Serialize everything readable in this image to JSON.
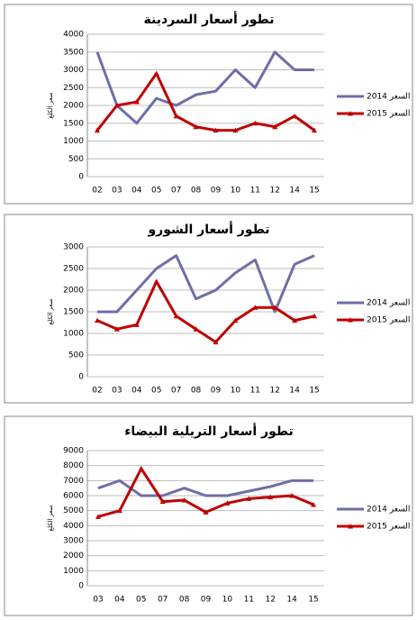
{
  "chart_data": [
    {
      "type": "line",
      "title": "تطور أسعار السردينة",
      "y_label": "سعر الكلغ",
      "categories": [
        "02",
        "03",
        "04",
        "05",
        "07",
        "08",
        "09",
        "10",
        "11",
        "12",
        "14",
        "15"
      ],
      "series": [
        {
          "name": "السعر 2014",
          "color": "#6e6ea8",
          "values": [
            3500,
            2000,
            1500,
            2200,
            2000,
            2300,
            2400,
            3000,
            2500,
            3500,
            3000,
            3000
          ]
        },
        {
          "name": "السعر 2015",
          "color": "#c00000",
          "values": [
            1300,
            2000,
            2100,
            2900,
            1700,
            1400,
            1300,
            1300,
            1500,
            1400,
            1700,
            1300
          ]
        }
      ],
      "ylim": [
        0,
        4000
      ],
      "yticks": [
        0,
        500,
        1000,
        1500,
        2000,
        2500,
        3000,
        3500,
        4000
      ],
      "grid": true,
      "legend": "right"
    },
    {
      "type": "line",
      "title": "تطور أسعار الشورو",
      "y_label": "سعر الكلغ",
      "categories": [
        "02",
        "03",
        "04",
        "05",
        "07",
        "08",
        "09",
        "10",
        "11",
        "12",
        "14",
        "15"
      ],
      "series": [
        {
          "name": "السعر 2014",
          "color": "#6e6ea8",
          "values": [
            1500,
            1500,
            2000,
            2500,
            2800,
            1800,
            2000,
            2400,
            2700,
            1500,
            2600,
            2800
          ]
        },
        {
          "name": "السعر 2015",
          "color": "#c00000",
          "values": [
            1300,
            1100,
            1200,
            2200,
            1400,
            1100,
            800,
            1300,
            1600,
            1600,
            1300,
            1400
          ]
        }
      ],
      "ylim": [
        0,
        3000
      ],
      "yticks": [
        0,
        500,
        1000,
        1500,
        2000,
        2500,
        3000
      ],
      "grid": true,
      "legend": "right"
    },
    {
      "type": "line",
      "title": "تطور أسعار التريلية البيضاء",
      "y_label": "سعر الكلغ",
      "categories": [
        "03",
        "04",
        "05",
        "07",
        "08",
        "09",
        "10",
        "11",
        "12",
        "14",
        "15"
      ],
      "series": [
        {
          "name": "السعر 2014",
          "color": "#6e6ea8",
          "values": [
            6500,
            7000,
            6000,
            6000,
            6500,
            6000,
            6000,
            6300,
            6600,
            7000,
            7000
          ]
        },
        {
          "name": "السعر 2015",
          "color": "#c00000",
          "values": [
            4600,
            5000,
            7800,
            5600,
            5700,
            4900,
            5500,
            5800,
            5900,
            6000,
            5400
          ]
        }
      ],
      "ylim": [
        0,
        9000
      ],
      "yticks": [
        0,
        1000,
        2000,
        3000,
        4000,
        5000,
        6000,
        7000,
        8000,
        9000
      ],
      "grid": true,
      "legend": "right"
    }
  ]
}
